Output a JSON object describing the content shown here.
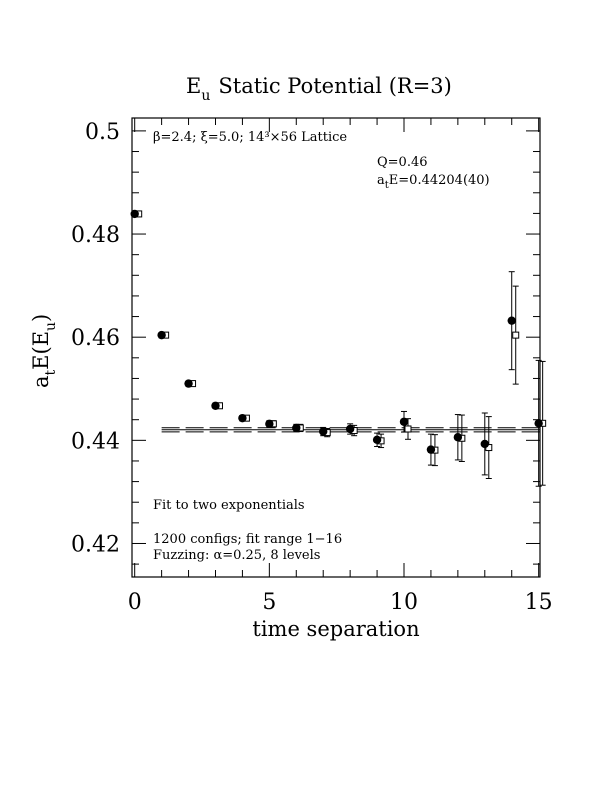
{
  "chart_data": {
    "type": "scatter",
    "title_main": "E",
    "title_sub": "u",
    "title_rest": "Static Potential (R=3)",
    "xlabel": "time separation",
    "ylabel": {
      "p1": "a",
      "p1_sub": "t",
      "p2": "E(E",
      "p2_sub": "u",
      "p3": ")"
    },
    "xlim": [
      -0.1,
      15.05
    ],
    "ylim": [
      0.4135,
      0.5025
    ],
    "xticks": [
      0,
      5,
      10,
      15
    ],
    "yticks": [
      0.42,
      0.44,
      0.46,
      0.48,
      0.5
    ],
    "xtick_labels": [
      "0",
      "5",
      "10",
      "15"
    ],
    "ytick_labels": [
      "0.42",
      "0.44",
      "0.46",
      "0.48",
      "0.5"
    ],
    "annotations": {
      "lattice": "β=2.4; ξ=5.0; 14³×56 Lattice",
      "q": "Q=0.46",
      "energy_a": "a",
      "energy_t": "t",
      "energy_rest": "E=0.44204(40)",
      "fit": "Fit to two exponentials",
      "configs": "1200 configs; fit range 1−16",
      "fuzzing": "Fuzzing: α=0.25, 8 levels"
    },
    "fit": {
      "value": 0.44204,
      "error": 0.0004,
      "x_range": [
        1,
        15.05
      ]
    },
    "series": [
      {
        "marker": "filled-circle",
        "points": [
          {
            "x": 0,
            "y": 0.4839,
            "err": 0.0005
          },
          {
            "x": 1,
            "y": 0.4604,
            "err": 0.0004
          },
          {
            "x": 2,
            "y": 0.451,
            "err": 0.0004
          },
          {
            "x": 3,
            "y": 0.4467,
            "err": 0.0005
          },
          {
            "x": 4,
            "y": 0.4443,
            "err": 0.0005
          },
          {
            "x": 5,
            "y": 0.4432,
            "err": 0.0006
          },
          {
            "x": 6,
            "y": 0.4424,
            "err": 0.0007
          },
          {
            "x": 7,
            "y": 0.4417,
            "err": 0.0008
          },
          {
            "x": 8,
            "y": 0.4422,
            "err": 0.001
          },
          {
            "x": 9,
            "y": 0.4401,
            "err": 0.0013
          },
          {
            "x": 10,
            "y": 0.4436,
            "err": 0.002
          },
          {
            "x": 11,
            "y": 0.4382,
            "err": 0.003
          },
          {
            "x": 12,
            "y": 0.4406,
            "err": 0.0044
          },
          {
            "x": 13,
            "y": 0.4393,
            "err": 0.006
          },
          {
            "x": 14,
            "y": 0.4632,
            "err": 0.0095
          },
          {
            "x": 15,
            "y": 0.4433,
            "err": 0.0122
          }
        ]
      },
      {
        "marker": "open-square",
        "points": [
          {
            "x": 0,
            "y": 0.4839,
            "err": 0.0005
          },
          {
            "x": 1,
            "y": 0.4604,
            "err": 0.0004
          },
          {
            "x": 2,
            "y": 0.451,
            "err": 0.0004
          },
          {
            "x": 3,
            "y": 0.4467,
            "err": 0.0005
          },
          {
            "x": 4,
            "y": 0.4443,
            "err": 0.0005
          },
          {
            "x": 5,
            "y": 0.4432,
            "err": 0.0006
          },
          {
            "x": 6,
            "y": 0.4424,
            "err": 0.0007
          },
          {
            "x": 7,
            "y": 0.4415,
            "err": 0.0008
          },
          {
            "x": 8,
            "y": 0.4419,
            "err": 0.001
          },
          {
            "x": 9,
            "y": 0.4399,
            "err": 0.0013
          },
          {
            "x": 10,
            "y": 0.4422,
            "err": 0.002
          },
          {
            "x": 11,
            "y": 0.4381,
            "err": 0.003
          },
          {
            "x": 12,
            "y": 0.4404,
            "err": 0.0045
          },
          {
            "x": 13,
            "y": 0.4386,
            "err": 0.006
          },
          {
            "x": 14,
            "y": 0.4604,
            "err": 0.0095
          },
          {
            "x": 15,
            "y": 0.4433,
            "err": 0.012
          }
        ]
      }
    ]
  }
}
